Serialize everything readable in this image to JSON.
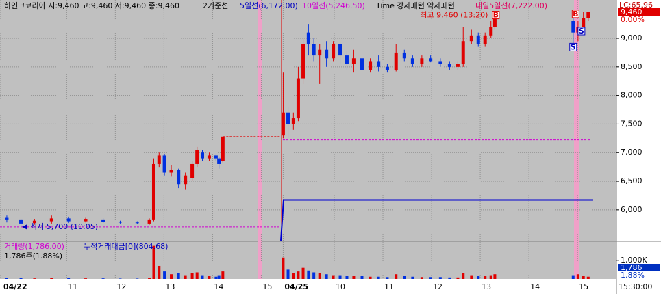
{
  "header": {
    "title": "하인크코리아 시:9,460 고:9,460 저:9,460 종:9,460",
    "base_line": "2기준선",
    "ma5_label": "5일선(6,172.00)",
    "ma10_label": "10일선(5,246.50)",
    "pattern_label": "Time 강세패턴 약세패턴",
    "next_ma5_label": "내일5일선(7,222.00)"
  },
  "side": {
    "lc": "LC:65.96",
    "price": "9,460",
    "change": "0.00%",
    "volume_box": "1,786",
    "volume_pct": "1.88%"
  },
  "chart_data": [
    {
      "type": "candlestick",
      "annotations": {
        "high": "최고 9,460 (13:20)",
        "low": "최저 5,700 (10:05)"
      },
      "time_label": "15:30:00",
      "xlim": [
        9.63,
        22.3
      ],
      "xticks": [
        {
          "value": 9.63,
          "label": "04/22"
        },
        11,
        12,
        13,
        14,
        15,
        {
          "value": 15.45,
          "label": "04/25"
        },
        {
          "value": 16.5,
          "label": "10"
        },
        {
          "value": 17.5,
          "label": "11"
        },
        {
          "value": 18.5,
          "label": "12"
        },
        {
          "value": 19.5,
          "label": "13"
        },
        {
          "value": 20.5,
          "label": "14"
        },
        {
          "value": 21.5,
          "label": "15"
        }
      ],
      "ylim": [
        5460,
        9670
      ],
      "yticks": [
        {
          "value": 6000,
          "label": "6,000"
        },
        {
          "value": 6500,
          "label": "6,500"
        },
        {
          "value": 7000,
          "label": "7,000"
        },
        {
          "value": 7500,
          "label": "7,500"
        },
        {
          "value": 8000,
          "label": "8,000"
        },
        {
          "value": 8500,
          "label": "8,500"
        },
        {
          "value": 9000,
          "label": "9,000"
        }
      ],
      "up_color": "#e00000",
      "down_color": "#0030e0",
      "levels": {
        "ma5": 6172,
        "next_ma5": 7222,
        "high": 9460,
        "low": 5700
      },
      "x": [
        9.77,
        10.06,
        10.34,
        10.69,
        11.04,
        11.39,
        11.75,
        12.1,
        12.45,
        12.7,
        12.79,
        12.9,
        13.01,
        13.15,
        13.3,
        13.44,
        13.58,
        13.68,
        13.79,
        13.93,
        14.07,
        14.13,
        14.21,
        15.45,
        15.55,
        15.66,
        15.76,
        15.86,
        15.97,
        16.08,
        16.2,
        16.34,
        16.48,
        16.62,
        16.76,
        16.9,
        17.07,
        17.24,
        17.41,
        17.59,
        17.77,
        17.94,
        18.11,
        18.3,
        18.48,
        18.68,
        18.87,
        19.04,
        19.15,
        19.32,
        19.46,
        19.6,
        19.72,
        19.8,
        21.41,
        21.51,
        21.62,
        21.72
      ],
      "open": [
        5860,
        5820,
        5770,
        5800,
        5850,
        5800,
        5820,
        5790,
        5780,
        5760,
        5820,
        6800,
        6950,
        6650,
        6700,
        6450,
        6550,
        6800,
        7000,
        6900,
        6950,
        6900,
        6850,
        7300,
        7700,
        7500,
        7600,
        8300,
        9100,
        8900,
        8700,
        8800,
        8650,
        8900,
        8700,
        8550,
        8650,
        8450,
        8600,
        8500,
        8450,
        8750,
        8650,
        8550,
        8650,
        8600,
        8550,
        8500,
        8550,
        8950,
        9050,
        8900,
        9050,
        9200,
        9300,
        9100,
        9200,
        9350
      ],
      "high": [
        5900,
        5840,
        5830,
        5900,
        5880,
        5860,
        5850,
        5810,
        5800,
        5850,
        6900,
        7000,
        6980,
        6780,
        6720,
        6650,
        6850,
        7100,
        7050,
        7000,
        6970,
        6920,
        7280,
        8400,
        7800,
        7700,
        8500,
        9000,
        9250,
        9000,
        8900,
        8950,
        8950,
        8920,
        8780,
        8800,
        8700,
        8650,
        8700,
        8550,
        8900,
        8800,
        8700,
        8700,
        8700,
        8650,
        8600,
        8600,
        9200,
        9150,
        9100,
        9100,
        9300,
        9460,
        9400,
        9300,
        9460,
        9460
      ],
      "low": [
        5780,
        5720,
        5740,
        5760,
        5770,
        5780,
        5770,
        5760,
        5750,
        5740,
        5800,
        6750,
        6600,
        6580,
        6380,
        6350,
        6500,
        6750,
        6850,
        6850,
        6850,
        6720,
        6830,
        7250,
        7250,
        7400,
        7550,
        8200,
        8700,
        8600,
        8200,
        8500,
        8600,
        8550,
        8450,
        8400,
        8400,
        8400,
        8420,
        8400,
        8420,
        8600,
        8500,
        8500,
        8580,
        8500,
        8450,
        8450,
        8500,
        8900,
        8850,
        8850,
        9000,
        9150,
        8900,
        8950,
        9150,
        9300
      ],
      "close": [
        5820,
        5760,
        5810,
        5850,
        5800,
        5830,
        5790,
        5780,
        5770,
        5820,
        6800,
        6950,
        6650,
        6700,
        6450,
        6600,
        6800,
        7050,
        6900,
        6950,
        6900,
        6800,
        7280,
        7700,
        7500,
        7600,
        8300,
        8900,
        8900,
        8700,
        8800,
        8650,
        8900,
        8700,
        8550,
        8650,
        8450,
        8600,
        8500,
        8450,
        8750,
        8650,
        8550,
        8650,
        8600,
        8550,
        8500,
        8550,
        8950,
        9050,
        8900,
        9050,
        9200,
        9460,
        9100,
        9200,
        9350,
        9460
      ],
      "signals": [
        {
          "label": "B",
          "x": 19.82,
          "price": 9400
        },
        {
          "label": "S",
          "x": 21.41,
          "price": 8840
        },
        {
          "label": "B",
          "x": 21.46,
          "price": 9420
        },
        {
          "label": "S",
          "x": 21.58,
          "price": 9120
        }
      ]
    },
    {
      "type": "bar",
      "legend": {
        "volume": "거래량(1,786.00)",
        "amount": "누적거래대금[0](804.68)",
        "current": "1,786주(1.88%)"
      },
      "ylim": [
        0,
        1950
      ],
      "yticks": [
        {
          "value": 1000,
          "label": "1,000K"
        }
      ],
      "values": [
        60,
        40,
        30,
        50,
        40,
        30,
        30,
        20,
        20,
        60,
        1780,
        700,
        400,
        250,
        300,
        200,
        300,
        350,
        200,
        150,
        120,
        200,
        400,
        1150,
        500,
        300,
        400,
        600,
        450,
        350,
        300,
        250,
        200,
        200,
        150,
        150,
        150,
        120,
        120,
        100,
        250,
        150,
        120,
        100,
        100,
        100,
        80,
        80,
        300,
        200,
        150,
        150,
        200,
        250,
        200,
        250,
        150,
        120
      ]
    }
  ]
}
